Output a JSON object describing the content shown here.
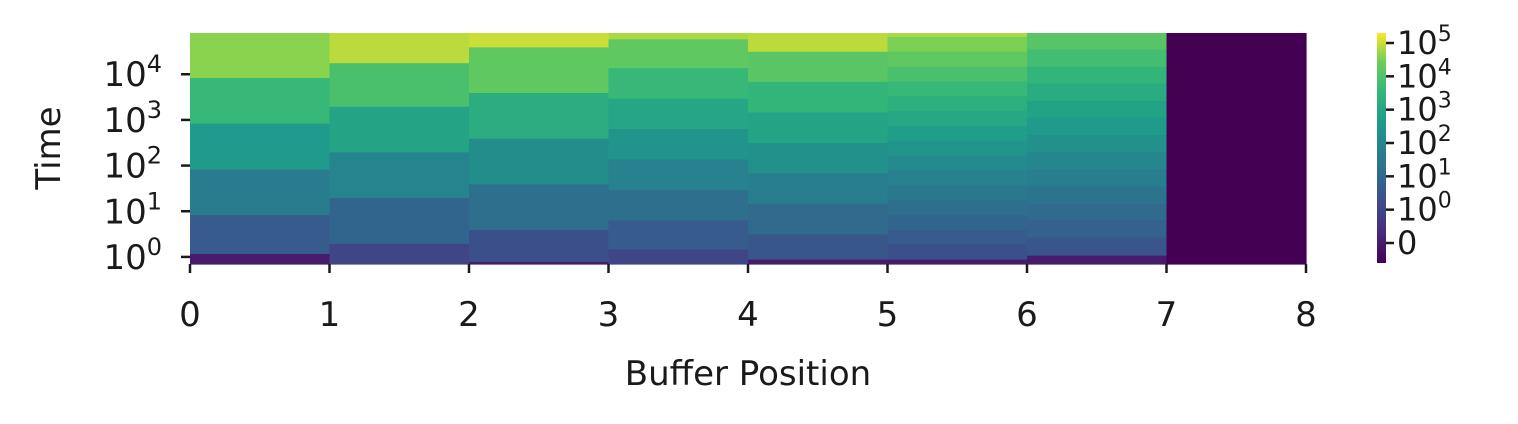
{
  "chart_data": {
    "type": "heatmap",
    "title": "",
    "xlabel": "Buffer Position",
    "ylabel": "Time",
    "x_ticks": [
      "0",
      "1",
      "2",
      "3",
      "4",
      "5",
      "6",
      "7",
      "8"
    ],
    "x_range": [
      0,
      8
    ],
    "y_scale": "log",
    "y_range": [
      0.7,
      80000
    ],
    "y_ticks": [
      {
        "value": 1,
        "base": "10",
        "exp": "0"
      },
      {
        "value": 10,
        "base": "10",
        "exp": "1"
      },
      {
        "value": 100,
        "base": "10",
        "exp": "2"
      },
      {
        "value": 1000,
        "base": "10",
        "exp": "3"
      },
      {
        "value": 10000,
        "base": "10",
        "exp": "4"
      }
    ],
    "colormap": "viridis",
    "colorbar": {
      "scale": "symlog",
      "ticks": [
        {
          "value": 0,
          "label": "0",
          "base": "",
          "exp": ""
        },
        {
          "value": 1,
          "label": "",
          "base": "10",
          "exp": "0"
        },
        {
          "value": 10,
          "label": "",
          "base": "10",
          "exp": "1"
        },
        {
          "value": 100,
          "label": "",
          "base": "10",
          "exp": "2"
        },
        {
          "value": 1000,
          "label": "",
          "base": "10",
          "exp": "3"
        },
        {
          "value": 10000,
          "label": "",
          "base": "10",
          "exp": "4"
        },
        {
          "value": 100000,
          "label": "",
          "base": "10",
          "exp": "5"
        }
      ]
    },
    "columns": [
      {
        "x0": 0,
        "x1": 1,
        "cells": [
          {
            "t0": 0.7,
            "t1": 1.2,
            "v": 0
          },
          {
            "t0": 1.2,
            "t1": 8.5,
            "v": 4
          },
          {
            "t0": 8.5,
            "t1": 85,
            "v": 40
          },
          {
            "t0": 85,
            "t1": 850,
            "v": 400
          },
          {
            "t0": 850,
            "t1": 8500,
            "v": 4000
          },
          {
            "t0": 8500,
            "t1": 80000,
            "v": 40000
          }
        ]
      },
      {
        "x0": 1,
        "x1": 2,
        "cells": [
          {
            "t0": 0.7,
            "t1": 2,
            "v": 1
          },
          {
            "t0": 2,
            "t1": 20,
            "v": 8
          },
          {
            "t0": 20,
            "t1": 200,
            "v": 80
          },
          {
            "t0": 200,
            "t1": 2000,
            "v": 800
          },
          {
            "t0": 2000,
            "t1": 18000,
            "v": 8000
          },
          {
            "t0": 18000,
            "t1": 80000,
            "v": 80000
          }
        ]
      },
      {
        "x0": 2,
        "x1": 3,
        "cells": [
          {
            "t0": 0.7,
            "t1": 0.8,
            "v": 0
          },
          {
            "t0": 0.8,
            "t1": 4,
            "v": 2
          },
          {
            "t0": 4,
            "t1": 40,
            "v": 16
          },
          {
            "t0": 40,
            "t1": 400,
            "v": 160
          },
          {
            "t0": 400,
            "t1": 4000,
            "v": 1600
          },
          {
            "t0": 4000,
            "t1": 40000,
            "v": 16000
          },
          {
            "t0": 40000,
            "t1": 80000,
            "v": 100000
          }
        ]
      },
      {
        "x0": 3,
        "x1": 4,
        "cells": [
          {
            "t0": 0.7,
            "t1": 1.5,
            "v": 1
          },
          {
            "t0": 1.5,
            "t1": 6.5,
            "v": 4
          },
          {
            "t0": 6.5,
            "t1": 30,
            "v": 16
          },
          {
            "t0": 30,
            "t1": 140,
            "v": 64
          },
          {
            "t0": 140,
            "t1": 650,
            "v": 260
          },
          {
            "t0": 650,
            "t1": 3000,
            "v": 1000
          },
          {
            "t0": 3000,
            "t1": 14000,
            "v": 4000
          },
          {
            "t0": 14000,
            "t1": 60000,
            "v": 16000
          },
          {
            "t0": 60000,
            "t1": 80000,
            "v": 64000
          }
        ]
      },
      {
        "x0": 4,
        "x1": 5,
        "cells": [
          {
            "t0": 0.7,
            "t1": 0.9,
            "v": 0
          },
          {
            "t0": 0.9,
            "t1": 3.2,
            "v": 3
          },
          {
            "t0": 3.2,
            "t1": 15,
            "v": 12
          },
          {
            "t0": 15,
            "t1": 70,
            "v": 50
          },
          {
            "t0": 70,
            "t1": 320,
            "v": 200
          },
          {
            "t0": 320,
            "t1": 1500,
            "v": 800
          },
          {
            "t0": 1500,
            "t1": 7000,
            "v": 3200
          },
          {
            "t0": 7000,
            "t1": 32000,
            "v": 13000
          },
          {
            "t0": 32000,
            "t1": 80000,
            "v": 80000
          }
        ]
      },
      {
        "x0": 5,
        "x1": 6,
        "cells": [
          {
            "t0": 0.7,
            "t1": 0.9,
            "v": 0
          },
          {
            "t0": 0.9,
            "t1": 2,
            "v": 2
          },
          {
            "t0": 2,
            "t1": 4,
            "v": 4
          },
          {
            "t0": 4,
            "t1": 8.5,
            "v": 8
          },
          {
            "t0": 8.5,
            "t1": 18,
            "v": 16
          },
          {
            "t0": 18,
            "t1": 38,
            "v": 32
          },
          {
            "t0": 38,
            "t1": 80,
            "v": 64
          },
          {
            "t0": 80,
            "t1": 170,
            "v": 128
          },
          {
            "t0": 170,
            "t1": 360,
            "v": 256
          },
          {
            "t0": 360,
            "t1": 760,
            "v": 512
          },
          {
            "t0": 760,
            "t1": 1600,
            "v": 1024
          },
          {
            "t0": 1600,
            "t1": 3400,
            "v": 2048
          },
          {
            "t0": 3400,
            "t1": 7200,
            "v": 4096
          },
          {
            "t0": 7200,
            "t1": 15000,
            "v": 8192
          },
          {
            "t0": 15000,
            "t1": 32000,
            "v": 16384
          },
          {
            "t0": 32000,
            "t1": 68000,
            "v": 32768
          },
          {
            "t0": 68000,
            "t1": 80000,
            "v": 65536
          }
        ]
      },
      {
        "x0": 6,
        "x1": 7,
        "cells": [
          {
            "t0": 0.7,
            "t1": 1.1,
            "v": 0
          },
          {
            "t0": 1.1,
            "t1": 2.7,
            "v": 3
          },
          {
            "t0": 2.7,
            "t1": 6.5,
            "v": 6
          },
          {
            "t0": 6.5,
            "t1": 15,
            "v": 12
          },
          {
            "t0": 15,
            "t1": 36,
            "v": 24
          },
          {
            "t0": 36,
            "t1": 85,
            "v": 48
          },
          {
            "t0": 85,
            "t1": 200,
            "v": 96
          },
          {
            "t0": 200,
            "t1": 480,
            "v": 192
          },
          {
            "t0": 480,
            "t1": 1150,
            "v": 384
          },
          {
            "t0": 1150,
            "t1": 2700,
            "v": 768
          },
          {
            "t0": 2700,
            "t1": 6500,
            "v": 1536
          },
          {
            "t0": 6500,
            "t1": 15000,
            "v": 3072
          },
          {
            "t0": 15000,
            "t1": 36000,
            "v": 6144
          },
          {
            "t0": 36000,
            "t1": 80000,
            "v": 12288
          }
        ]
      },
      {
        "x0": 7,
        "x1": 8,
        "cells": [
          {
            "t0": 0.7,
            "t1": 80000,
            "v": -1
          }
        ]
      }
    ]
  }
}
